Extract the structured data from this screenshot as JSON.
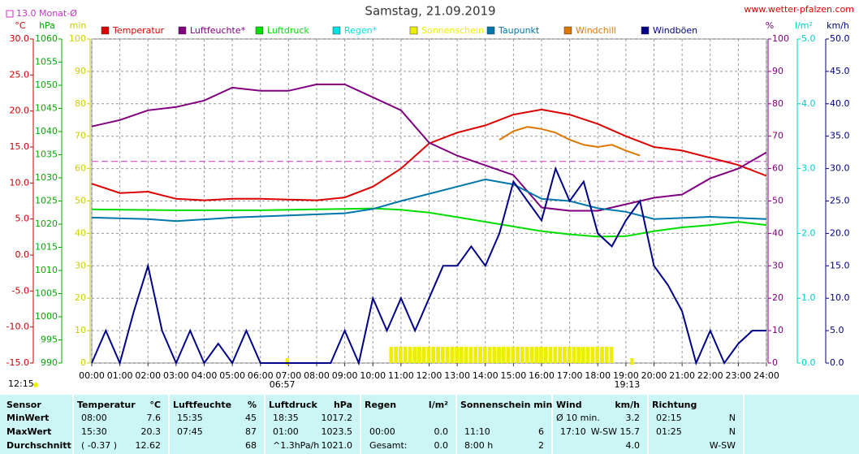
{
  "chart_data": {
    "type": "line",
    "title": "Samstag, 21.09.2019",
    "source": "www.wetter-pfalzen.com",
    "reference": {
      "label": "13.0 Monat-Ø",
      "value": 13,
      "color": "#cc33cc"
    },
    "annotations": {
      "left_time": "12:15",
      "sunrise": "06:57",
      "sunset": "19:13"
    },
    "grid": true,
    "xlim": [
      "00:00",
      "24:00"
    ],
    "xticks": [
      "00:00",
      "01:00",
      "02:00",
      "03:00",
      "04:00",
      "05:00",
      "06:00",
      "07:00",
      "08:00",
      "09:00",
      "10:00",
      "11:00",
      "12:00",
      "13:00",
      "14:00",
      "15:00",
      "16:00",
      "17:00",
      "18:00",
      "19:00",
      "20:00",
      "21:00",
      "22:00",
      "23:00",
      "24:00"
    ],
    "axes": {
      "temp": {
        "label": "°C",
        "color": "#cc0000",
        "side": "left",
        "lim": [
          -15,
          30
        ],
        "ticks": [
          {
            "value": -15,
            "label": "-15.0"
          },
          {
            "value": -10,
            "label": "-10.0"
          },
          {
            "value": -5,
            "label": "-5.0"
          },
          {
            "value": 0,
            "label": "0.0"
          },
          {
            "value": 5,
            "label": "5.0"
          },
          {
            "value": 10,
            "label": "10.0"
          },
          {
            "value": 15,
            "label": "15.0"
          },
          {
            "value": 20,
            "label": "20.0"
          },
          {
            "value": 25,
            "label": "25.0"
          },
          {
            "value": 30,
            "label": "30.0"
          }
        ]
      },
      "pressure": {
        "label": "hPa",
        "color": "#00aa00",
        "side": "left",
        "lim": [
          990,
          1060
        ],
        "ticks": [
          990,
          995,
          1000,
          1005,
          1010,
          1015,
          1020,
          1025,
          1030,
          1035,
          1040,
          1045,
          1050,
          1055,
          1060
        ]
      },
      "minutes": {
        "label": "min",
        "color": "#cccc00",
        "side": "left",
        "lim": [
          0,
          100
        ],
        "ticks": [
          0,
          10,
          20,
          30,
          40,
          50,
          60,
          70,
          80,
          90,
          100
        ]
      },
      "percent": {
        "label": "%",
        "color": "#800080",
        "side": "right",
        "lim": [
          0,
          100
        ],
        "ticks": [
          0,
          10,
          20,
          30,
          40,
          50,
          60,
          70,
          80,
          90,
          100
        ]
      },
      "rain": {
        "label": "l/m²",
        "color": "#00cccc",
        "side": "right",
        "lim": [
          0,
          5
        ],
        "ticks": [
          {
            "value": 0,
            "label": "0.0"
          },
          {
            "value": 1,
            "label": "1.0"
          },
          {
            "value": 2,
            "label": "2.0"
          },
          {
            "value": 3,
            "label": "3.0"
          },
          {
            "value": 4,
            "label": "4.0"
          },
          {
            "value": 5,
            "label": "5.0"
          }
        ]
      },
      "wind": {
        "label": "km/h",
        "color": "#000080",
        "side": "right",
        "lim": [
          0,
          50
        ],
        "ticks": [
          {
            "value": 0,
            "label": "0.0"
          },
          {
            "value": 5,
            "label": "5.0"
          },
          {
            "value": 10,
            "label": "10.0"
          },
          {
            "value": 15,
            "label": "15.0"
          },
          {
            "value": 20,
            "label": "20.0"
          },
          {
            "value": 25,
            "label": "25.0"
          },
          {
            "value": 30,
            "label": "30.0"
          },
          {
            "value": 35,
            "label": "35.0"
          },
          {
            "value": 40,
            "label": "40.0"
          },
          {
            "value": 45,
            "label": "45.0"
          },
          {
            "value": 50,
            "label": "50.0"
          }
        ]
      }
    },
    "series": [
      {
        "name": "Temperatur",
        "color": "#dd0000",
        "axis": "temp",
        "kind": "line",
        "x": [
          "00:00",
          "01:00",
          "02:00",
          "03:00",
          "04:00",
          "05:00",
          "06:00",
          "07:00",
          "08:00",
          "09:00",
          "10:00",
          "11:00",
          "12:00",
          "13:00",
          "14:00",
          "15:00",
          "16:00",
          "17:00",
          "18:00",
          "19:00",
          "20:00",
          "21:00",
          "22:00",
          "23:00",
          "24:00"
        ],
        "values": [
          9.9,
          8.6,
          8.8,
          7.8,
          7.6,
          7.8,
          7.8,
          7.7,
          7.6,
          8.0,
          9.5,
          12.0,
          15.5,
          17.0,
          18.0,
          19.5,
          20.2,
          19.5,
          18.2,
          16.5,
          15.0,
          14.5,
          13.5,
          12.5,
          11.0
        ]
      },
      {
        "name": "Luftfeuchte*",
        "color": "#800080",
        "axis": "percent",
        "kind": "line",
        "x": [
          "00:00",
          "01:00",
          "02:00",
          "03:00",
          "04:00",
          "05:00",
          "06:00",
          "07:00",
          "08:00",
          "09:00",
          "10:00",
          "11:00",
          "12:00",
          "13:00",
          "14:00",
          "15:00",
          "16:00",
          "17:00",
          "18:00",
          "19:00",
          "20:00",
          "21:00",
          "22:00",
          "23:00",
          "24:00"
        ],
        "values": [
          73,
          75,
          78,
          79,
          81,
          85,
          84,
          84,
          86,
          86,
          82,
          78,
          68,
          64,
          61,
          58,
          48,
          47,
          47,
          49,
          51,
          52,
          57,
          60,
          65
        ]
      },
      {
        "name": "Luftdruck",
        "color": "#00dd00",
        "axis": "pressure",
        "kind": "line",
        "x": [
          "00:00",
          "03:00",
          "06:00",
          "09:00",
          "10:00",
          "11:00",
          "12:00",
          "13:00",
          "14:00",
          "15:00",
          "16:00",
          "17:00",
          "18:00",
          "19:00",
          "20:00",
          "21:00",
          "22:00",
          "23:00",
          "24:00"
        ],
        "values": [
          1023.2,
          1023.0,
          1023.0,
          1023.3,
          1023.4,
          1023.1,
          1022.5,
          1021.5,
          1020.5,
          1019.5,
          1018.5,
          1017.8,
          1017.3,
          1017.4,
          1018.5,
          1019.3,
          1019.8,
          1020.5,
          1019.8
        ]
      },
      {
        "name": "Regen*",
        "color": "#00e0e0",
        "axis": "rain",
        "kind": "bar",
        "x": [],
        "values": []
      },
      {
        "name": "Sonnenschein",
        "color": "#eeee00",
        "axis": "minutes",
        "kind": "bar",
        "x": [
          "10:40",
          "10:50",
          "11:00",
          "11:10",
          "11:20",
          "11:30",
          "11:40",
          "11:50",
          "12:00",
          "12:10",
          "12:20",
          "12:30",
          "12:40",
          "12:50",
          "13:00",
          "13:10",
          "13:20",
          "13:30",
          "13:40",
          "13:50",
          "14:00",
          "14:10",
          "14:20",
          "14:30",
          "14:40",
          "14:50",
          "15:00",
          "15:10",
          "15:20",
          "15:30",
          "15:40",
          "15:50",
          "16:00",
          "16:10",
          "16:20",
          "16:30",
          "16:40",
          "16:50",
          "17:00",
          "17:10",
          "17:20",
          "17:30",
          "17:40",
          "17:50",
          "18:00",
          "18:10",
          "18:20",
          "18:30"
        ],
        "values": [
          5,
          5,
          5,
          5,
          5,
          5,
          5,
          5,
          5,
          5,
          5,
          5,
          5,
          5,
          5,
          5,
          5,
          5,
          5,
          5,
          5,
          5,
          5,
          5,
          5,
          5,
          5,
          5,
          5,
          5,
          5,
          5,
          5,
          5,
          5,
          5,
          5,
          5,
          5,
          5,
          5,
          5,
          5,
          5,
          5,
          5,
          5,
          5
        ]
      },
      {
        "name": "Taupunkt",
        "color": "#0077aa",
        "axis": "temp",
        "kind": "line",
        "x": [
          "00:00",
          "02:00",
          "03:00",
          "05:00",
          "07:00",
          "09:00",
          "10:00",
          "11:00",
          "12:00",
          "13:00",
          "14:00",
          "15:00",
          "16:00",
          "17:00",
          "18:00",
          "19:00",
          "20:00",
          "22:00",
          "24:00"
        ],
        "values": [
          5.2,
          5.0,
          4.7,
          5.2,
          5.5,
          5.8,
          6.4,
          7.5,
          8.5,
          9.5,
          10.5,
          9.8,
          7.8,
          7.5,
          6.5,
          6.0,
          5.0,
          5.3,
          5.0
        ]
      },
      {
        "name": "Windchill",
        "color": "#dd7700",
        "axis": "temp",
        "kind": "line",
        "x": [
          "14:30",
          "15:00",
          "15:30",
          "16:00",
          "16:30",
          "17:00",
          "17:30",
          "18:00",
          "18:30",
          "19:00",
          "19:30"
        ],
        "values": [
          16.0,
          17.2,
          17.8,
          17.5,
          17.0,
          16.0,
          15.3,
          15.0,
          15.3,
          14.5,
          13.8
        ]
      },
      {
        "name": "Windböen",
        "color": "#000088",
        "axis": "wind",
        "kind": "line",
        "x": [
          "00:00",
          "00:30",
          "01:00",
          "01:30",
          "02:00",
          "02:30",
          "03:00",
          "03:30",
          "04:00",
          "04:30",
          "05:00",
          "05:30",
          "06:00",
          "06:30",
          "07:00",
          "07:30",
          "08:00",
          "08:30",
          "09:00",
          "09:30",
          "10:00",
          "10:30",
          "11:00",
          "11:30",
          "12:00",
          "12:30",
          "13:00",
          "13:30",
          "14:00",
          "14:30",
          "15:00",
          "15:30",
          "16:00",
          "16:30",
          "17:00",
          "17:30",
          "18:00",
          "18:30",
          "19:00",
          "19:30",
          "20:00",
          "20:30",
          "21:00",
          "21:30",
          "22:00",
          "22:30",
          "23:00",
          "23:30",
          "24:00"
        ],
        "values": [
          0,
          5,
          0,
          8,
          15,
          5,
          0,
          5,
          0,
          3,
          0,
          5,
          0,
          0,
          0,
          0,
          0,
          0,
          5,
          0,
          10,
          5,
          10,
          5,
          10,
          15,
          15,
          18,
          15,
          20,
          28,
          25,
          22,
          30,
          25,
          28,
          20,
          18,
          22,
          25,
          15,
          12,
          8,
          0,
          5,
          0,
          3,
          5,
          5
        ]
      }
    ]
  },
  "table": {
    "header": [
      "Sensor",
      "Temperatur",
      "°C",
      "Luftfeuchte",
      "%",
      "Luftdruck",
      "hPa",
      "Regen",
      "l/m²",
      "Sonnenschein min",
      null,
      "Wind",
      "km/h",
      "Richtung",
      null
    ],
    "rows": [
      [
        "MinWert",
        "08:00",
        "7.6",
        "15:35",
        "45",
        "18:35",
        "1017.2",
        null,
        null,
        null,
        null,
        "Ø 10 min.",
        "3.2",
        "02:15",
        "N"
      ],
      [
        "MaxWert",
        "15:30",
        "20.3",
        "07:45",
        "87",
        "01:00",
        "1023.5",
        "00:00",
        "0.0",
        "11:10",
        "6",
        "17:10",
        "W-SW 15.7",
        "01:25",
        "N"
      ],
      [
        "Durchschnitt",
        "( -0.37 )",
        "12.62",
        null,
        "68",
        "^1.3hPa/h",
        "1021.0",
        "Gesamt:",
        "0.0",
        "8:00 h",
        "2",
        null,
        "4.0",
        null,
        "W-SW"
      ]
    ]
  }
}
